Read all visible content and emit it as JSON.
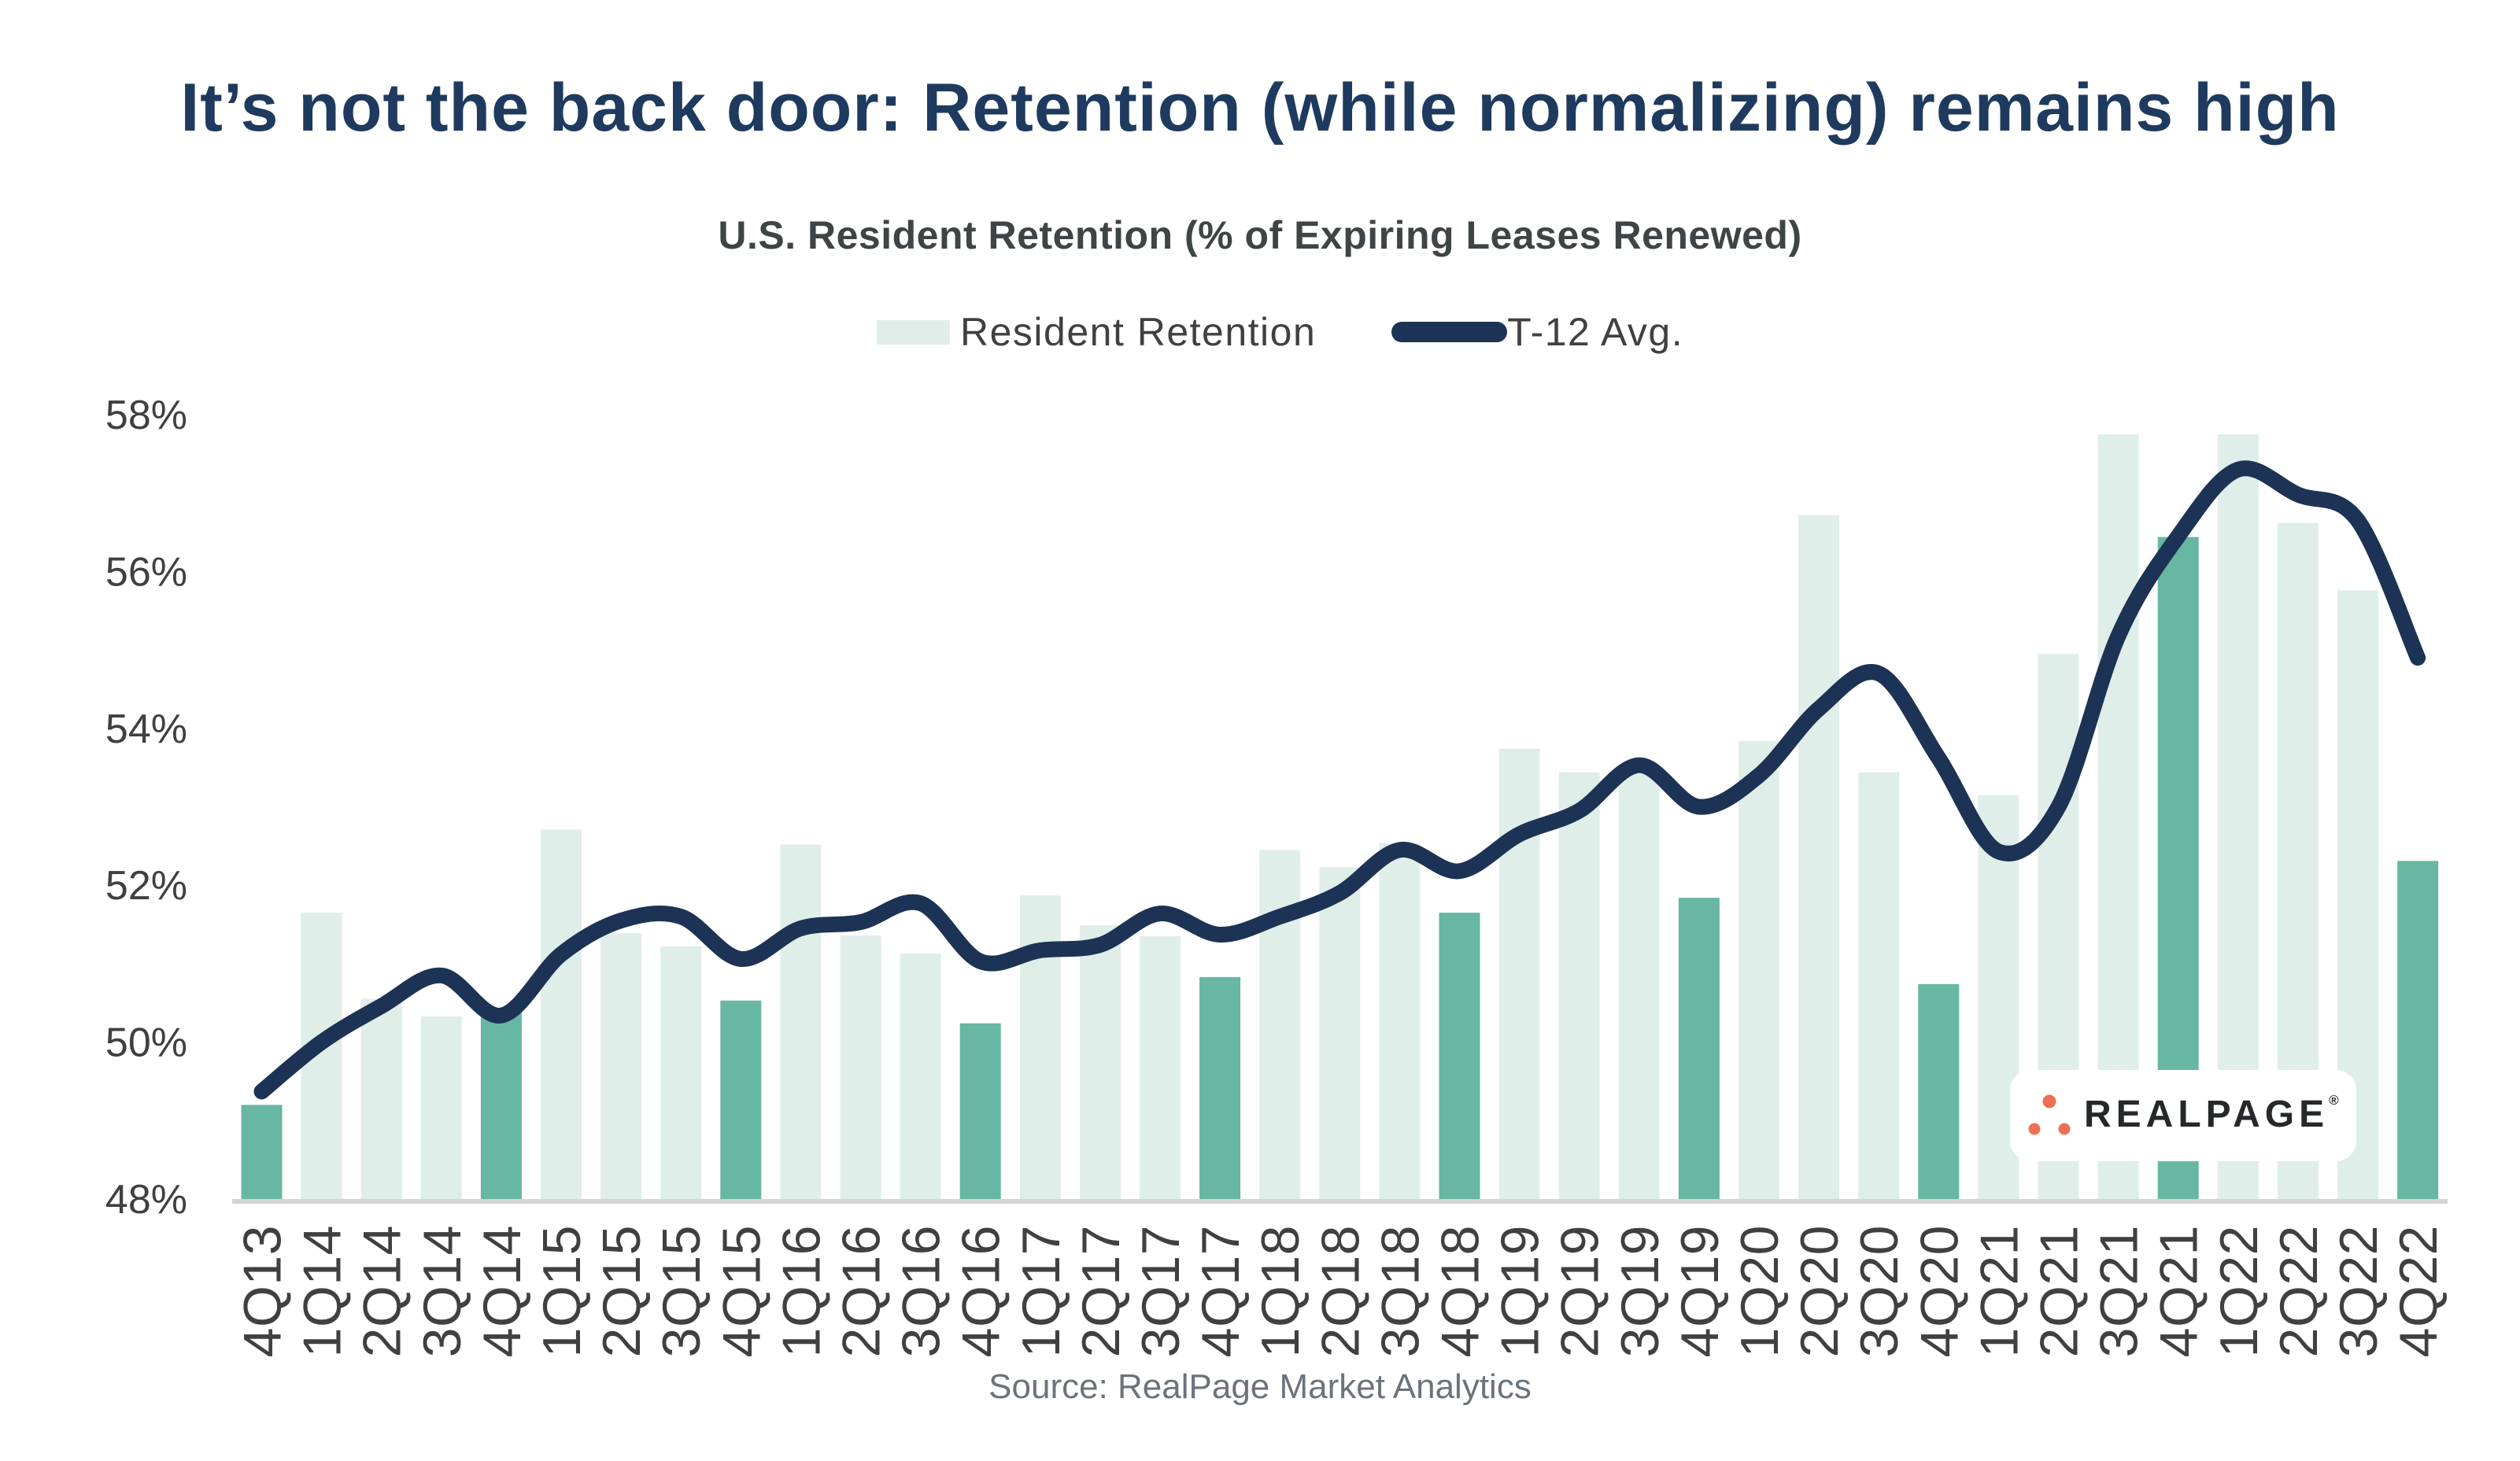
{
  "title": "It’s not the back door: Retention (while normalizing) remains high",
  "chart_data": {
    "type": "bar",
    "title": "U.S. Resident Retention (% of Expiring Leases Renewed)",
    "categories": [
      "4Q13",
      "1Q14",
      "2Q14",
      "3Q14",
      "4Q14",
      "1Q15",
      "2Q15",
      "3Q15",
      "4Q15",
      "1Q16",
      "2Q16",
      "3Q16",
      "4Q16",
      "1Q17",
      "2Q17",
      "3Q17",
      "4Q17",
      "1Q18",
      "2Q18",
      "3Q18",
      "4Q18",
      "1Q19",
      "2Q19",
      "3Q19",
      "4Q19",
      "1Q20",
      "2Q20",
      "3Q20",
      "4Q20",
      "1Q21",
      "2Q21",
      "3Q21",
      "4Q21",
      "1Q22",
      "2Q22",
      "3Q22",
      "4Q22"
    ],
    "series": [
      {
        "name": "Resident Retention",
        "type": "bar",
        "values": [
          49.2,
          51.65,
          50.55,
          50.33,
          50.4,
          52.71,
          51.39,
          51.22,
          50.53,
          52.52,
          51.36,
          51.13,
          50.24,
          51.87,
          51.49,
          51.35,
          50.83,
          52.45,
          52.23,
          52.54,
          51.65,
          53.74,
          53.44,
          53.42,
          51.84,
          53.84,
          56.72,
          53.44,
          50.74,
          53.15,
          54.95,
          57.75,
          56.44,
          57.75,
          56.62,
          55.76,
          52.31
        ],
        "color": "#e0eeea",
        "highlight_color": "#67b7a2",
        "highlight_note": "every fourth-quarter (4Q) bar uses the darker green"
      },
      {
        "name": "T-12 Avg.",
        "type": "line",
        "values": [
          49.37,
          50.0,
          50.46,
          50.85,
          50.34,
          51.12,
          51.55,
          51.6,
          51.06,
          51.45,
          51.53,
          51.77,
          51.03,
          51.17,
          51.24,
          51.64,
          51.37,
          51.6,
          51.9,
          52.45,
          52.18,
          52.65,
          52.95,
          53.53,
          53.0,
          53.4,
          54.25,
          54.7,
          53.62,
          52.43,
          53.0,
          55.18,
          56.45,
          57.3,
          56.98,
          56.65,
          54.9
        ],
        "color": "#1c3355"
      }
    ],
    "y_axis": {
      "min": 48,
      "max": 58,
      "tick_step": 2,
      "tick_labels": [
        "48%",
        "50%",
        "52%",
        "54%",
        "56%",
        "58%"
      ],
      "unit": "%"
    },
    "legend_position": "top-center",
    "grid": "off",
    "source": "Source: RealPage Market Analytics"
  },
  "colors": {
    "title": "#1e3a5f",
    "subtitle": "#3f4446",
    "bar_light": "#e0eeea",
    "bar_dark": "#67b7a2",
    "line": "#1c3355",
    "axis_line": "#d5d3d8",
    "tick_text": "#404040",
    "legend_text": "#404040",
    "source_text": "#6b737d",
    "logo_dot": "#ee7052",
    "logo_text": "#26292b"
  },
  "logo": {
    "text": "REALPAGE",
    "registered_mark": "®"
  }
}
